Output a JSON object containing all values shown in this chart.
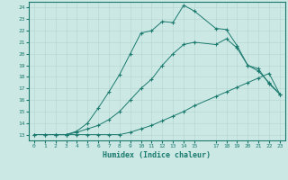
{
  "title": "",
  "xlabel": "Humidex (Indice chaleur)",
  "bg_color": "#cce8e4",
  "line_color": "#1a7a6e",
  "grid_color": "#b8d8d4",
  "xlim": [
    -0.5,
    23.5
  ],
  "ylim": [
    12.5,
    24.5
  ],
  "xticks": [
    0,
    1,
    2,
    3,
    4,
    5,
    6,
    7,
    8,
    9,
    10,
    11,
    12,
    13,
    14,
    15,
    17,
    18,
    19,
    20,
    21,
    22,
    23
  ],
  "yticks": [
    13,
    14,
    15,
    16,
    17,
    18,
    19,
    20,
    21,
    22,
    23,
    24
  ],
  "line1_x": [
    0,
    1,
    2,
    3,
    4,
    5,
    6,
    7,
    8,
    9,
    10,
    11,
    12,
    13,
    14,
    15,
    17,
    18,
    19,
    20,
    21,
    22,
    23
  ],
  "line1_y": [
    13,
    13,
    13,
    13,
    13,
    13,
    13,
    13,
    13,
    13.2,
    13.5,
    13.8,
    14.2,
    14.6,
    15.0,
    15.5,
    16.3,
    16.7,
    17.1,
    17.5,
    17.9,
    18.3,
    16.5
  ],
  "line2_x": [
    0,
    1,
    2,
    3,
    4,
    5,
    6,
    7,
    8,
    9,
    10,
    11,
    12,
    13,
    14,
    15,
    17,
    18,
    19,
    20,
    21,
    22,
    23
  ],
  "line2_y": [
    13,
    13,
    13,
    13,
    13.2,
    13.5,
    13.8,
    14.3,
    15.0,
    16.0,
    17.0,
    17.8,
    19.0,
    20.0,
    20.8,
    21.0,
    20.8,
    21.3,
    20.5,
    19.0,
    18.5,
    17.5,
    16.5
  ],
  "line3_x": [
    2,
    3,
    4,
    5,
    6,
    7,
    8,
    9,
    10,
    11,
    12,
    13,
    14,
    15,
    17,
    18,
    19,
    20,
    21,
    22,
    23
  ],
  "line3_y": [
    13,
    13,
    13.3,
    14.0,
    15.3,
    16.7,
    18.2,
    20.0,
    21.8,
    22.0,
    22.8,
    22.7,
    24.2,
    23.7,
    22.2,
    22.1,
    20.7,
    19.0,
    18.7,
    17.4,
    16.5
  ]
}
